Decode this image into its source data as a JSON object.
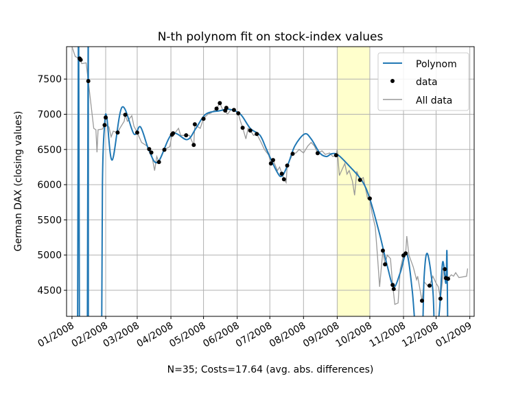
{
  "chart_data": {
    "type": "line",
    "title": "N-th polynom fit on stock-index values",
    "xlabel": "N=35; Costs=17.64 (avg. abs. differences)",
    "ylabel": "German DAX (closing values)",
    "xlim": [
      "2007-12-27",
      "2009-01-05"
    ],
    "ylim": [
      4130,
      7960
    ],
    "grid": true,
    "legend_position": "top-right",
    "x_ticks": [
      {
        "date": "2008-01-01",
        "label": "01/2008"
      },
      {
        "date": "2008-02-01",
        "label": "02/2008"
      },
      {
        "date": "2008-03-01",
        "label": "03/2008"
      },
      {
        "date": "2008-04-01",
        "label": "04/2008"
      },
      {
        "date": "2008-05-01",
        "label": "05/2008"
      },
      {
        "date": "2008-06-01",
        "label": "06/2008"
      },
      {
        "date": "2008-07-01",
        "label": "07/2008"
      },
      {
        "date": "2008-08-01",
        "label": "08/2008"
      },
      {
        "date": "2008-09-01",
        "label": "09/2008"
      },
      {
        "date": "2008-10-01",
        "label": "10/2008"
      },
      {
        "date": "2008-11-01",
        "label": "11/2008"
      },
      {
        "date": "2008-12-01",
        "label": "12/2008"
      },
      {
        "date": "2009-01-01",
        "label": "01/2009"
      }
    ],
    "y_ticks": [
      4500,
      5000,
      5500,
      6000,
      6500,
      7000,
      7500
    ],
    "highlight_span": {
      "from": "2008-09-01",
      "to": "2008-10-01",
      "color": "#ffffcc"
    },
    "colors": {
      "polynom": "#1f77b4",
      "data": "#000000",
      "all_data": "#999999"
    },
    "legend": [
      "Polynom",
      "data",
      "All data"
    ],
    "series": [
      {
        "name": "All data",
        "kind": "line",
        "points": [
          [
            "2008-01-01",
            7960
          ],
          [
            "2008-01-04",
            7820
          ],
          [
            "2008-01-08",
            7790
          ],
          [
            "2008-01-10",
            7720
          ],
          [
            "2008-01-14",
            7730
          ],
          [
            "2008-01-16",
            7470
          ],
          [
            "2008-01-18",
            7200
          ],
          [
            "2008-01-21",
            6800
          ],
          [
            "2008-01-23",
            6780
          ],
          [
            "2008-01-24",
            6460
          ],
          [
            "2008-01-25",
            6780
          ],
          [
            "2008-01-29",
            6790
          ],
          [
            "2008-01-31",
            6850
          ],
          [
            "2008-02-04",
            6820
          ],
          [
            "2008-02-06",
            6680
          ],
          [
            "2008-02-08",
            6760
          ],
          [
            "2008-02-12",
            6740
          ],
          [
            "2008-02-14",
            6800
          ],
          [
            "2008-02-18",
            6900
          ],
          [
            "2008-02-19",
            6990
          ],
          [
            "2008-02-21",
            6900
          ],
          [
            "2008-02-25",
            6980
          ],
          [
            "2008-02-27",
            6830
          ],
          [
            "2008-03-01",
            6740
          ],
          [
            "2008-03-05",
            6600
          ],
          [
            "2008-03-10",
            6550
          ],
          [
            "2008-03-14",
            6450
          ],
          [
            "2008-03-17",
            6200
          ],
          [
            "2008-03-19",
            6400
          ],
          [
            "2008-03-21",
            6320
          ],
          [
            "2008-03-26",
            6500
          ],
          [
            "2008-03-31",
            6540
          ],
          [
            "2008-04-02",
            6710
          ],
          [
            "2008-04-04",
            6720
          ],
          [
            "2008-04-08",
            6800
          ],
          [
            "2008-04-10",
            6700
          ],
          [
            "2008-04-15",
            6700
          ],
          [
            "2008-04-18",
            6700
          ],
          [
            "2008-04-22",
            6560
          ],
          [
            "2008-04-23",
            6850
          ],
          [
            "2008-04-28",
            6800
          ],
          [
            "2008-05-01",
            6940
          ],
          [
            "2008-05-05",
            7000
          ],
          [
            "2008-05-08",
            7020
          ],
          [
            "2008-05-13",
            7080
          ],
          [
            "2008-05-16",
            7160
          ],
          [
            "2008-05-19",
            7050
          ],
          [
            "2008-05-21",
            7050
          ],
          [
            "2008-05-23",
            7000
          ],
          [
            "2008-05-26",
            7060
          ],
          [
            "2008-05-29",
            7060
          ],
          [
            "2008-06-02",
            7010
          ],
          [
            "2008-06-04",
            6900
          ],
          [
            "2008-06-06",
            6810
          ],
          [
            "2008-06-09",
            6650
          ],
          [
            "2008-06-11",
            6800
          ],
          [
            "2008-06-13",
            6770
          ],
          [
            "2008-06-16",
            6700
          ],
          [
            "2008-06-19",
            6720
          ],
          [
            "2008-06-23",
            6600
          ],
          [
            "2008-06-26",
            6500
          ],
          [
            "2008-06-30",
            6420
          ],
          [
            "2008-07-02",
            6300
          ],
          [
            "2008-07-04",
            6350
          ],
          [
            "2008-07-08",
            6200
          ],
          [
            "2008-07-10",
            6250
          ],
          [
            "2008-07-14",
            6080
          ],
          [
            "2008-07-16",
            6030
          ],
          [
            "2008-07-17",
            6270
          ],
          [
            "2008-07-21",
            6400
          ],
          [
            "2008-07-22",
            6440
          ],
          [
            "2008-07-25",
            6450
          ],
          [
            "2008-07-28",
            6500
          ],
          [
            "2008-08-01",
            6450
          ],
          [
            "2008-08-05",
            6550
          ],
          [
            "2008-08-08",
            6600
          ],
          [
            "2008-08-11",
            6550
          ],
          [
            "2008-08-14",
            6450
          ],
          [
            "2008-08-18",
            6480
          ],
          [
            "2008-08-21",
            6430
          ],
          [
            "2008-08-25",
            6450
          ],
          [
            "2008-08-28",
            6400
          ],
          [
            "2008-08-31",
            6420
          ],
          [
            "2008-09-01",
            6500
          ],
          [
            "2008-09-03",
            6130
          ],
          [
            "2008-09-05",
            6200
          ],
          [
            "2008-09-08",
            6300
          ],
          [
            "2008-09-10",
            6150
          ],
          [
            "2008-09-12",
            6200
          ],
          [
            "2008-09-15",
            6050
          ],
          [
            "2008-09-17",
            5850
          ],
          [
            "2008-09-19",
            6190
          ],
          [
            "2008-09-22",
            6070
          ],
          [
            "2008-09-25",
            6100
          ],
          [
            "2008-09-29",
            5800
          ],
          [
            "2008-10-01",
            5800
          ],
          [
            "2008-10-03",
            5600
          ],
          [
            "2008-10-06",
            5400
          ],
          [
            "2008-10-08",
            5000
          ],
          [
            "2008-10-10",
            4550
          ],
          [
            "2008-10-13",
            5060
          ],
          [
            "2008-10-15",
            4870
          ],
          [
            "2008-10-17",
            5000
          ],
          [
            "2008-10-20",
            4950
          ],
          [
            "2008-10-22",
            4580
          ],
          [
            "2008-10-24",
            4300
          ],
          [
            "2008-10-27",
            4320
          ],
          [
            "2008-10-29",
            4800
          ],
          [
            "2008-11-01",
            5000
          ],
          [
            "2008-11-03",
            5030
          ],
          [
            "2008-11-04",
            5270
          ],
          [
            "2008-11-06",
            5000
          ],
          [
            "2008-11-10",
            4830
          ],
          [
            "2008-11-13",
            4650
          ],
          [
            "2008-11-14",
            4700
          ],
          [
            "2008-11-18",
            4350
          ],
          [
            "2008-11-20",
            4620
          ],
          [
            "2008-11-24",
            4550
          ],
          [
            "2008-11-25",
            4570
          ],
          [
            "2008-11-28",
            4700
          ],
          [
            "2008-12-01",
            4600
          ],
          [
            "2008-12-03",
            4550
          ],
          [
            "2008-12-05",
            4380
          ],
          [
            "2008-12-08",
            4800
          ],
          [
            "2008-12-10",
            4670
          ],
          [
            "2008-12-12",
            4670
          ],
          [
            "2008-12-15",
            4720
          ],
          [
            "2008-12-17",
            4700
          ],
          [
            "2008-12-19",
            4750
          ],
          [
            "2008-12-22",
            4680
          ],
          [
            "2008-12-29",
            4700
          ],
          [
            "2008-12-30",
            4810
          ]
        ]
      },
      {
        "name": "Polynom",
        "kind": "line",
        "points": [
          [
            "2008-01-06",
            3000
          ],
          [
            "2008-01-07",
            9000
          ],
          [
            "2008-01-08",
            3000
          ],
          [
            "2008-01-15",
            3000
          ],
          [
            "2008-01-16",
            9000
          ],
          [
            "2008-01-16",
            3000
          ],
          [
            "2008-01-28",
            3000
          ],
          [
            "2008-01-29",
            6000
          ],
          [
            "2008-01-31",
            6850
          ],
          [
            "2008-02-02",
            6960
          ],
          [
            "2008-02-07",
            6350
          ],
          [
            "2008-02-16",
            7100
          ],
          [
            "2008-02-27",
            6720
          ],
          [
            "2008-03-04",
            6820
          ],
          [
            "2008-03-12",
            6480
          ],
          [
            "2008-03-20",
            6320
          ],
          [
            "2008-04-02",
            6720
          ],
          [
            "2008-04-16",
            6640
          ],
          [
            "2008-04-24",
            6800
          ],
          [
            "2008-05-03",
            7000
          ],
          [
            "2008-05-16",
            7050
          ],
          [
            "2008-05-25",
            7070
          ],
          [
            "2008-06-04",
            7000
          ],
          [
            "2008-06-13",
            6800
          ],
          [
            "2008-06-22",
            6700
          ],
          [
            "2008-06-28",
            6500
          ],
          [
            "2008-07-07",
            6200
          ],
          [
            "2008-07-12",
            6120
          ],
          [
            "2008-07-18",
            6300
          ],
          [
            "2008-07-24",
            6550
          ],
          [
            "2008-08-02",
            6720
          ],
          [
            "2008-08-08",
            6650
          ],
          [
            "2008-08-16",
            6450
          ],
          [
            "2008-08-22",
            6400
          ],
          [
            "2008-08-27",
            6440
          ],
          [
            "2008-09-02",
            6420
          ],
          [
            "2008-09-13",
            6250
          ],
          [
            "2008-09-24",
            6050
          ],
          [
            "2008-10-01",
            5800
          ],
          [
            "2008-10-10",
            5300
          ],
          [
            "2008-10-17",
            4850
          ],
          [
            "2008-10-23",
            4550
          ],
          [
            "2008-10-29",
            4750
          ],
          [
            "2008-11-04",
            5020
          ],
          [
            "2008-11-09",
            4500
          ],
          [
            "2008-11-13",
            3800
          ],
          [
            "2008-11-18",
            3800
          ],
          [
            "2008-11-20",
            4700
          ],
          [
            "2008-11-23",
            5020
          ],
          [
            "2008-11-28",
            4500
          ],
          [
            "2008-11-30",
            3800
          ],
          [
            "2008-12-04",
            4200
          ],
          [
            "2008-12-07",
            4900
          ],
          [
            "2008-12-10",
            4600
          ],
          [
            "2008-12-11",
            5030
          ],
          [
            "2008-12-12",
            3500
          ]
        ]
      },
      {
        "name": "data",
        "kind": "scatter",
        "points": [
          [
            "2008-01-08",
            7792
          ],
          [
            "2008-01-09",
            7773
          ],
          [
            "2008-01-16",
            7471
          ],
          [
            "2008-01-31",
            6847
          ],
          [
            "2008-02-01",
            6954
          ],
          [
            "2008-02-12",
            6740
          ],
          [
            "2008-02-19",
            6993
          ],
          [
            "2008-03-01",
            6740
          ],
          [
            "2008-03-12",
            6506
          ],
          [
            "2008-03-14",
            6457
          ],
          [
            "2008-03-21",
            6321
          ],
          [
            "2008-03-26",
            6496
          ],
          [
            "2008-04-02",
            6710
          ],
          [
            "2008-04-03",
            6730
          ],
          [
            "2008-04-15",
            6701
          ],
          [
            "2008-04-22",
            6564
          ],
          [
            "2008-04-23",
            6857
          ],
          [
            "2008-05-01",
            6935
          ],
          [
            "2008-05-13",
            7081
          ],
          [
            "2008-05-16",
            7159
          ],
          [
            "2008-05-21",
            7052
          ],
          [
            "2008-05-22",
            7091
          ],
          [
            "2008-05-29",
            7061
          ],
          [
            "2008-06-02",
            7013
          ],
          [
            "2008-06-06",
            6808
          ],
          [
            "2008-06-13",
            6769
          ],
          [
            "2008-06-19",
            6720
          ],
          [
            "2008-07-02",
            6301
          ],
          [
            "2008-07-04",
            6350
          ],
          [
            "2008-07-12",
            6155
          ],
          [
            "2008-07-14",
            6077
          ],
          [
            "2008-07-17",
            6272
          ],
          [
            "2008-07-22",
            6438
          ],
          [
            "2008-08-14",
            6447
          ],
          [
            "2008-08-31",
            6418
          ],
          [
            "2008-09-22",
            6067
          ],
          [
            "2008-10-01",
            5804
          ],
          [
            "2008-10-13",
            5063
          ],
          [
            "2008-10-15",
            4868
          ],
          [
            "2008-10-22",
            4576
          ],
          [
            "2008-10-23",
            4518
          ],
          [
            "2008-11-01",
            4995
          ],
          [
            "2008-11-03",
            5024
          ],
          [
            "2008-11-18",
            4352
          ],
          [
            "2008-11-25",
            4566
          ],
          [
            "2008-12-05",
            4381
          ],
          [
            "2008-12-09",
            4800
          ],
          [
            "2008-12-10",
            4673
          ],
          [
            "2008-12-12",
            4664
          ]
        ]
      }
    ]
  }
}
